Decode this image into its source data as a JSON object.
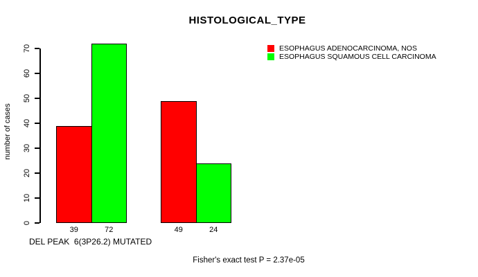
{
  "chart_data": {
    "type": "bar",
    "title": "HISTOLOGICAL_TYPE",
    "ylabel": "number of cases",
    "xlabel": "DEL PEAK  6(3P26.2) MUTATED",
    "footer": "Fisher's exact test P = 2.37e-05",
    "series": [
      {
        "name": "ESOPHAGUS ADENOCARCINOMA, NOS",
        "color": "#ff0000",
        "values": [
          39,
          49
        ]
      },
      {
        "name": "ESOPHAGUS SQUAMOUS CELL CARCINOMA",
        "color": "#00ff00",
        "values": [
          72,
          24
        ]
      }
    ],
    "bar_value_labels": [
      [
        "39",
        "72"
      ],
      [
        "49",
        "24"
      ]
    ],
    "yticks": [
      0,
      10,
      20,
      30,
      40,
      50,
      60,
      70
    ],
    "ylim": [
      0,
      72
    ],
    "grid": false,
    "legend_position": "top-right",
    "bar_border_color": "#000000",
    "axis_color": "#000000",
    "background_color": "#ffffff"
  }
}
